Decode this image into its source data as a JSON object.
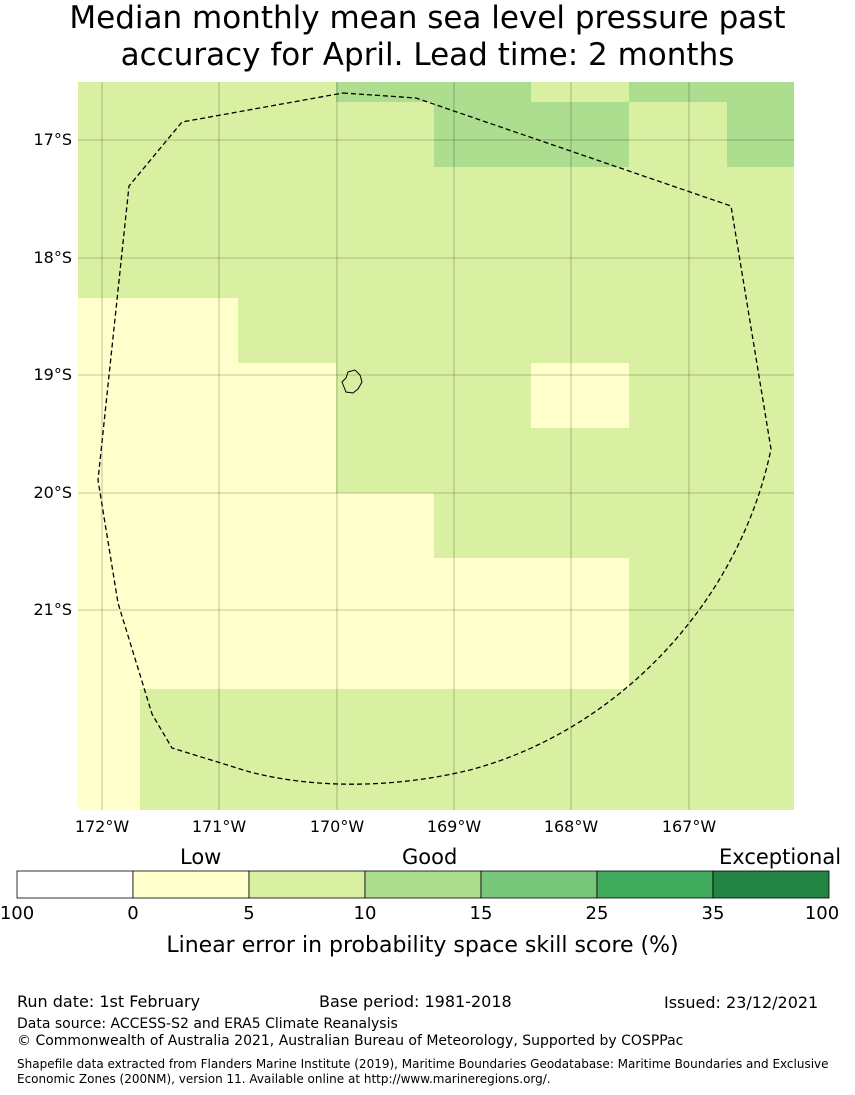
{
  "title_line1": "Median monthly mean sea level pressure past",
  "title_line2": "accuracy for April. Lead time: 2 months",
  "map": {
    "lat_labels": [
      "17°S",
      "18°S",
      "19°S",
      "20°S",
      "21°S"
    ],
    "lon_labels": [
      "172°W",
      "171°W",
      "170°W",
      "169°W",
      "168°W",
      "167°W"
    ]
  },
  "legend": {
    "categories": [
      "Low",
      "Good",
      "Exceptional"
    ],
    "ticks": [
      "100",
      "0",
      "5",
      "10",
      "15",
      "25",
      "35",
      "100"
    ],
    "colors": [
      "#ffffff",
      "#ffffcc",
      "#d9f0a3",
      "#addd8e",
      "#78c679",
      "#41ab5d",
      "#238443"
    ],
    "title": "Linear error in probability space skill score (%)"
  },
  "footer": {
    "run_date": "Run date: 1st February",
    "base_period": "Base period: 1981-2018",
    "issued": "Issued: 23/12/2021",
    "data_source": "Data source: ACCESS-S2 and ERA5 Climate Reanalysis",
    "copyright": "© Commonwealth of Australia 2021, Australian Bureau of Meteorology, Supported by COSPPac",
    "shapefile": "Shapefile data extracted from Flanders Marine Institute (2019), Maritime Boundaries Geodatabase: Maritime Boundaries and Exclusive Economic Zones (200NM), version 11. Available online at http://www.marineregions.org/."
  }
}
